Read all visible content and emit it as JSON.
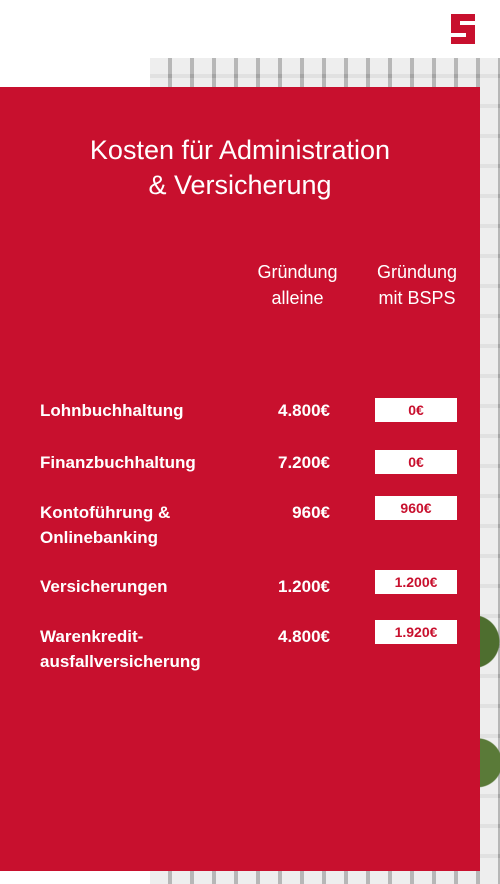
{
  "logo": {
    "letter": "S"
  },
  "title": {
    "line1": "Kosten für Administration",
    "line2": "& Versicherung"
  },
  "columns": {
    "alone": {
      "line1": "Gründung",
      "line2": "alleine"
    },
    "bsps": {
      "line1": "Gründung",
      "line2": "mit BSPS"
    }
  },
  "rows": [
    {
      "label_line1": "Lohnbuchhaltung",
      "label_line2": "",
      "alone": "4.800€",
      "bsps": "0€"
    },
    {
      "label_line1": "Finanzbuchhaltung",
      "label_line2": "",
      "alone": "7.200€",
      "bsps": "0€"
    },
    {
      "label_line1": "Kontoführung &",
      "label_line2": "Onlinebanking",
      "alone": "960€",
      "bsps": "960€"
    },
    {
      "label_line1": "Versicherungen",
      "label_line2": "",
      "alone": "1.200€",
      "bsps": "1.200€"
    },
    {
      "label_line1": "Warenkredit-",
      "label_line2": "ausfallversicherung",
      "alone": "4.800€",
      "bsps": "1.920€"
    }
  ],
  "colors": {
    "accent": "#c8102e",
    "text": "#ffffff"
  }
}
